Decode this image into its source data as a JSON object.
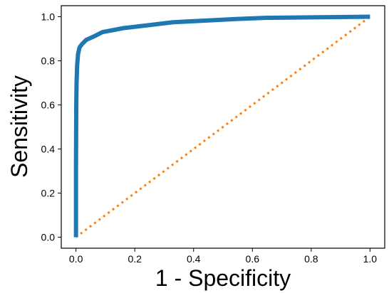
{
  "chart_data": {
    "type": "line",
    "title": "",
    "xlabel": "1 - Specificity",
    "ylabel": "Sensitivity",
    "xlim": [
      -0.05,
      1.05
    ],
    "ylim": [
      -0.05,
      1.05
    ],
    "x_ticks": [
      "0.0",
      "0.2",
      "0.4",
      "0.6",
      "0.8",
      "1.0"
    ],
    "y_ticks": [
      "0.0",
      "0.2",
      "0.4",
      "0.6",
      "0.8",
      "1.0"
    ],
    "grid": false,
    "legend": "none",
    "series": [
      {
        "color": "#1f77b4",
        "style": "solid",
        "points": [
          [
            0.0,
            0.0
          ],
          [
            0.0,
            0.3
          ],
          [
            0.001,
            0.6
          ],
          [
            0.002,
            0.7
          ],
          [
            0.004,
            0.78
          ],
          [
            0.007,
            0.83
          ],
          [
            0.012,
            0.86
          ],
          [
            0.02,
            0.875
          ],
          [
            0.035,
            0.895
          ],
          [
            0.06,
            0.91
          ],
          [
            0.09,
            0.93
          ],
          [
            0.16,
            0.948
          ],
          [
            0.25,
            0.962
          ],
          [
            0.33,
            0.975
          ],
          [
            0.45,
            0.983
          ],
          [
            0.55,
            0.99
          ],
          [
            0.65,
            0.995
          ],
          [
            0.8,
            0.997
          ],
          [
            1.0,
            1.0
          ]
        ]
      },
      {
        "color": "#ff7f0e",
        "style": "dotted",
        "points": [
          [
            0.0,
            0.0
          ],
          [
            1.0,
            1.0
          ]
        ]
      }
    ]
  }
}
